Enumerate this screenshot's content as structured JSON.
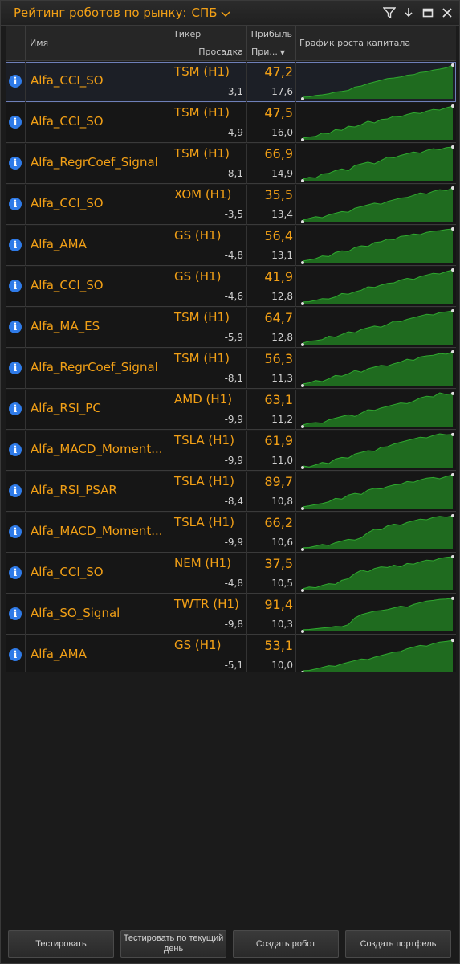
{
  "window": {
    "title": "Рейтинг роботов по рынку:",
    "market": "СПБ",
    "icons": [
      "filter-icon",
      "download-icon",
      "minimize-icon",
      "close-icon"
    ]
  },
  "table": {
    "columns": {
      "name": "Имя",
      "ticker": "Тикер",
      "drawdown": "Просадка",
      "profit": "Прибыль",
      "sort_col": "При...",
      "chart": "График роста капитала"
    },
    "rows": [
      {
        "name": "Alfa_CCI_SO",
        "ticker": "TSM (H1)",
        "profit": "47,2",
        "drawdown": "-3,1",
        "sortval": "17,6",
        "selected": true,
        "curve": [
          0.05,
          0.06,
          0.1,
          0.12,
          0.15,
          0.2,
          0.22,
          0.25,
          0.35,
          0.38,
          0.45,
          0.5,
          0.55,
          0.6,
          0.62,
          0.65,
          0.7,
          0.72,
          0.78,
          0.8,
          0.85,
          0.88,
          0.92,
          1.0
        ]
      },
      {
        "name": "Alfa_CCI_SO",
        "ticker": "TSM (H1)",
        "profit": "47,5",
        "drawdown": "-4,9",
        "sortval": "16,0",
        "selected": false,
        "curve": [
          0.05,
          0.08,
          0.1,
          0.2,
          0.18,
          0.3,
          0.28,
          0.4,
          0.38,
          0.45,
          0.55,
          0.5,
          0.6,
          0.62,
          0.7,
          0.68,
          0.75,
          0.8,
          0.78,
          0.85,
          0.9,
          0.88,
          0.95,
          1.0
        ]
      },
      {
        "name": "Alfa_RegrCoef_Signal",
        "ticker": "TSM (H1)",
        "profit": "66,9",
        "drawdown": "-8,1",
        "sortval": "14,9",
        "selected": false,
        "curve": [
          0.05,
          0.1,
          0.08,
          0.2,
          0.22,
          0.3,
          0.35,
          0.3,
          0.45,
          0.5,
          0.55,
          0.5,
          0.6,
          0.7,
          0.68,
          0.75,
          0.8,
          0.85,
          0.82,
          0.9,
          0.95,
          0.92,
          0.98,
          1.0
        ]
      },
      {
        "name": "Alfa_CCI_SO",
        "ticker": "XOM (H1)",
        "profit": "35,5",
        "drawdown": "-3,5",
        "sortval": "13,4",
        "selected": false,
        "curve": [
          0.05,
          0.1,
          0.15,
          0.12,
          0.2,
          0.25,
          0.3,
          0.28,
          0.4,
          0.45,
          0.5,
          0.55,
          0.52,
          0.6,
          0.65,
          0.7,
          0.72,
          0.78,
          0.85,
          0.82,
          0.9,
          0.95,
          0.92,
          1.0
        ]
      },
      {
        "name": "Alfa_AMA",
        "ticker": "GS (H1)",
        "profit": "56,4",
        "drawdown": "-4,8",
        "sortval": "13,1",
        "selected": false,
        "curve": [
          0.05,
          0.08,
          0.12,
          0.2,
          0.18,
          0.3,
          0.35,
          0.33,
          0.45,
          0.5,
          0.48,
          0.6,
          0.62,
          0.7,
          0.68,
          0.78,
          0.8,
          0.85,
          0.83,
          0.9,
          0.93,
          0.95,
          0.98,
          1.0
        ]
      },
      {
        "name": "Alfa_CCI_SO",
        "ticker": "GS (H1)",
        "profit": "41,9",
        "drawdown": "-4,6",
        "sortval": "12,8",
        "selected": false,
        "curve": [
          0.05,
          0.06,
          0.1,
          0.15,
          0.14,
          0.2,
          0.3,
          0.28,
          0.35,
          0.4,
          0.5,
          0.48,
          0.55,
          0.6,
          0.62,
          0.7,
          0.75,
          0.72,
          0.8,
          0.85,
          0.9,
          0.88,
          0.95,
          1.0
        ]
      },
      {
        "name": "Alfa_MA_ES",
        "ticker": "TSM (H1)",
        "profit": "64,7",
        "drawdown": "-5,9",
        "sortval": "12,8",
        "selected": false,
        "curve": [
          0.05,
          0.1,
          0.12,
          0.15,
          0.25,
          0.22,
          0.3,
          0.38,
          0.35,
          0.45,
          0.5,
          0.55,
          0.52,
          0.6,
          0.7,
          0.68,
          0.75,
          0.8,
          0.85,
          0.9,
          0.88,
          0.95,
          0.97,
          1.0
        ]
      },
      {
        "name": "Alfa_RegrCoef_Signal",
        "ticker": "TSM (H1)",
        "profit": "56,3",
        "drawdown": "-8,1",
        "sortval": "11,3",
        "selected": false,
        "curve": [
          0.05,
          0.08,
          0.15,
          0.12,
          0.2,
          0.3,
          0.28,
          0.35,
          0.45,
          0.4,
          0.5,
          0.55,
          0.6,
          0.58,
          0.65,
          0.7,
          0.78,
          0.75,
          0.85,
          0.88,
          0.9,
          0.95,
          0.93,
          1.0
        ]
      },
      {
        "name": "Alfa_RSI_PC",
        "ticker": "AMD (H1)",
        "profit": "63,1",
        "drawdown": "-9,9",
        "sortval": "11,2",
        "selected": false,
        "curve": [
          0.05,
          0.1,
          0.12,
          0.1,
          0.2,
          0.25,
          0.3,
          0.35,
          0.3,
          0.4,
          0.5,
          0.48,
          0.55,
          0.6,
          0.65,
          0.7,
          0.68,
          0.75,
          0.85,
          0.9,
          0.88,
          1.0,
          0.95,
          0.98
        ]
      },
      {
        "name": "Alfa_MACD_Moment...",
        "ticker": "TSLA (H1)",
        "profit": "61,9",
        "drawdown": "-9,9",
        "sortval": "11,0",
        "selected": false,
        "curve": [
          0.05,
          0.02,
          0.08,
          0.15,
          0.12,
          0.25,
          0.3,
          0.28,
          0.4,
          0.45,
          0.5,
          0.48,
          0.6,
          0.62,
          0.7,
          0.75,
          0.8,
          0.85,
          0.9,
          0.88,
          0.95,
          1.0,
          0.97,
          0.98
        ]
      },
      {
        "name": "Alfa_RSI_PSAR",
        "ticker": "TSLA (H1)",
        "profit": "89,7",
        "drawdown": "-8,4",
        "sortval": "10,8",
        "selected": false,
        "curve": [
          0.05,
          0.08,
          0.12,
          0.15,
          0.2,
          0.3,
          0.28,
          0.4,
          0.45,
          0.42,
          0.55,
          0.6,
          0.58,
          0.65,
          0.7,
          0.72,
          0.8,
          0.78,
          0.85,
          0.9,
          0.92,
          0.88,
          0.95,
          1.0
        ]
      },
      {
        "name": "Alfa_MACD_Moment...",
        "ticker": "TSLA (H1)",
        "profit": "66,2",
        "drawdown": "-9,9",
        "sortval": "10,6",
        "selected": false,
        "curve": [
          0.05,
          0.06,
          0.1,
          0.15,
          0.12,
          0.2,
          0.25,
          0.3,
          0.28,
          0.35,
          0.5,
          0.6,
          0.58,
          0.7,
          0.75,
          0.72,
          0.8,
          0.85,
          0.9,
          0.88,
          0.95,
          0.98,
          0.96,
          1.0
        ]
      },
      {
        "name": "Alfa_CCI_SO",
        "ticker": "NEM (H1)",
        "profit": "37,5",
        "drawdown": "-4,8",
        "sortval": "10,5",
        "selected": false,
        "curve": [
          0.05,
          0.1,
          0.08,
          0.15,
          0.2,
          0.18,
          0.3,
          0.35,
          0.5,
          0.6,
          0.55,
          0.65,
          0.7,
          0.68,
          0.75,
          0.7,
          0.8,
          0.78,
          0.85,
          0.9,
          0.88,
          0.95,
          0.98,
          1.0
        ]
      },
      {
        "name": "Alfa_SO_Signal",
        "ticker": "TWTR (H1)",
        "profit": "91,4",
        "drawdown": "-9,8",
        "sortval": "10,3",
        "selected": false,
        "curve": [
          0.05,
          0.06,
          0.08,
          0.1,
          0.12,
          0.15,
          0.14,
          0.2,
          0.4,
          0.5,
          0.55,
          0.6,
          0.62,
          0.65,
          0.7,
          0.75,
          0.72,
          0.8,
          0.85,
          0.9,
          0.92,
          0.95,
          0.96,
          0.98
        ]
      },
      {
        "name": "Alfa_AMA",
        "ticker": "GS (H1)",
        "profit": "53,1",
        "drawdown": "-5,1",
        "sortval": "10,0",
        "selected": false,
        "curve": [
          0.05,
          0.06,
          0.1,
          0.15,
          0.2,
          0.18,
          0.25,
          0.3,
          0.35,
          0.4,
          0.38,
          0.45,
          0.5,
          0.55,
          0.6,
          0.62,
          0.7,
          0.75,
          0.8,
          0.78,
          0.85,
          0.9,
          0.92,
          0.95
        ]
      }
    ]
  },
  "footer": {
    "buttons": [
      "Тестировать",
      "Тестировать по текущий день",
      "Создать робот",
      "Создать портфель"
    ]
  },
  "colors": {
    "accent": "#f2a016",
    "chart_fill": "#1f6b1f",
    "chart_line": "#2fa82f",
    "info_icon": "#2f7be8",
    "selection": "#6e7fb8"
  }
}
